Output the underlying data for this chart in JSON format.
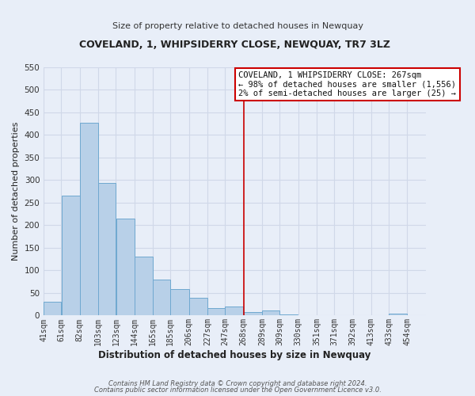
{
  "title": "COVELAND, 1, WHIPSIDERRY CLOSE, NEWQUAY, TR7 3LZ",
  "subtitle": "Size of property relative to detached houses in Newquay",
  "xlabel": "Distribution of detached houses by size in Newquay",
  "ylabel": "Number of detached properties",
  "footer_line1": "Contains HM Land Registry data © Crown copyright and database right 2024.",
  "footer_line2": "Contains public sector information licensed under the Open Government Licence v3.0.",
  "bar_left_edges": [
    41,
    61,
    82,
    103,
    123,
    144,
    165,
    185,
    206,
    227,
    247,
    268,
    289,
    309,
    330,
    351,
    371,
    392,
    413,
    433
  ],
  "bar_heights": [
    30,
    265,
    428,
    293,
    214,
    130,
    79,
    59,
    40,
    16,
    20,
    8,
    11,
    2,
    1,
    1,
    0,
    1,
    0,
    4
  ],
  "bar_widths": [
    20,
    21,
    21,
    20,
    21,
    21,
    20,
    21,
    21,
    20,
    21,
    21,
    20,
    21,
    21,
    20,
    21,
    21,
    20,
    21
  ],
  "bar_color": "#b8d0e8",
  "bar_edge_color": "#6fa8d0",
  "tick_labels": [
    "41sqm",
    "61sqm",
    "82sqm",
    "103sqm",
    "123sqm",
    "144sqm",
    "165sqm",
    "185sqm",
    "206sqm",
    "227sqm",
    "247sqm",
    "268sqm",
    "289sqm",
    "309sqm",
    "330sqm",
    "351sqm",
    "371sqm",
    "392sqm",
    "413sqm",
    "433sqm",
    "454sqm"
  ],
  "tick_positions": [
    41,
    61,
    82,
    103,
    123,
    144,
    165,
    185,
    206,
    227,
    247,
    268,
    289,
    309,
    330,
    351,
    371,
    392,
    413,
    433,
    454
  ],
  "vline_x": 268,
  "vline_color": "#cc0000",
  "ylim": [
    0,
    550
  ],
  "xlim": [
    41,
    475
  ],
  "annotation_title": "COVELAND, 1 WHIPSIDERRY CLOSE: 267sqm",
  "annotation_line1": "← 98% of detached houses are smaller (1,556)",
  "annotation_line2": "2% of semi-detached houses are larger (25) →",
  "grid_color": "#d0d8e8",
  "background_color": "#e8eef8",
  "plot_bg_color": "#e8eef8"
}
